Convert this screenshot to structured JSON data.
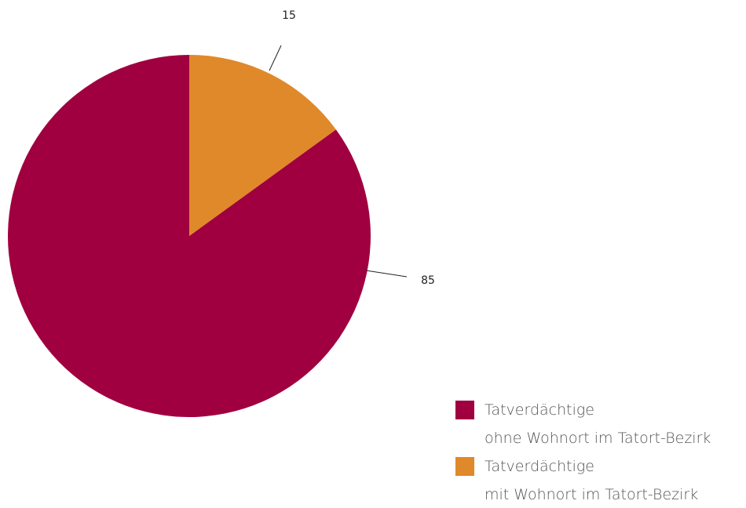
{
  "chart_data": {
    "type": "pie",
    "categories": [
      "Tatverdächtige\nohne Wohnort im Tatort-Bezirk",
      "Tatverdächtige\nmit Wohnort im Tatort-Bezirk"
    ],
    "values": [
      85,
      15
    ],
    "colors": [
      "#a0003f",
      "#e0892a"
    ]
  }
}
